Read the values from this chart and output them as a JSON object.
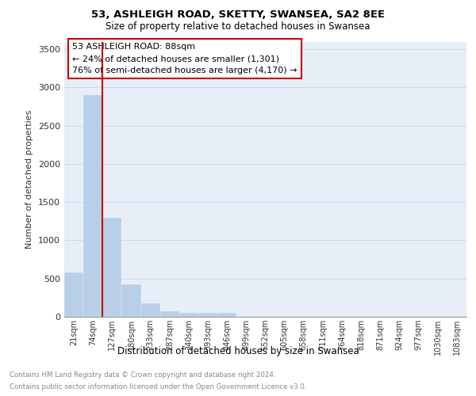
{
  "title": "53, ASHLEIGH ROAD, SKETTY, SWANSEA, SA2 8EE",
  "subtitle": "Size of property relative to detached houses in Swansea",
  "xlabel": "Distribution of detached houses by size in Swansea",
  "ylabel": "Number of detached properties",
  "footnote1": "Contains HM Land Registry data © Crown copyright and database right 2024.",
  "footnote2": "Contains public sector information licensed under the Open Government Licence v3.0.",
  "annotation_title": "53 ASHLEIGH ROAD: 88sqm",
  "annotation_line2": "← 24% of detached houses are smaller (1,301)",
  "annotation_line3": "76% of semi-detached houses are larger (4,170) →",
  "categories": [
    "21sqm",
    "74sqm",
    "127sqm",
    "180sqm",
    "233sqm",
    "287sqm",
    "340sqm",
    "393sqm",
    "446sqm",
    "499sqm",
    "552sqm",
    "605sqm",
    "658sqm",
    "711sqm",
    "764sqm",
    "818sqm",
    "871sqm",
    "924sqm",
    "977sqm",
    "1030sqm",
    "1083sqm"
  ],
  "values": [
    580,
    2900,
    1300,
    420,
    175,
    75,
    50,
    50,
    50,
    0,
    0,
    0,
    0,
    0,
    0,
    0,
    0,
    0,
    0,
    0,
    0
  ],
  "bar_color": "#b8cfe8",
  "grid_color": "#d0d8e8",
  "annotation_border_color": "#cc0000",
  "ylim": [
    0,
    3600
  ],
  "yticks": [
    0,
    500,
    1000,
    1500,
    2000,
    2500,
    3000,
    3500
  ],
  "property_line_color": "#cc0000",
  "bg_color": "#e8eef8"
}
